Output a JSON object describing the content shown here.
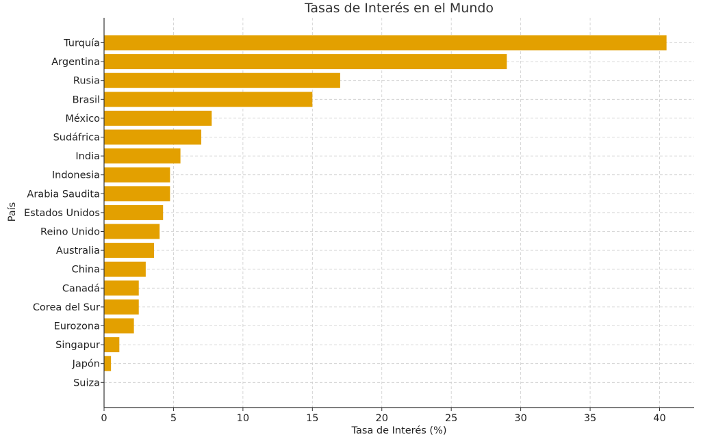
{
  "chart_data": {
    "type": "bar",
    "orientation": "horizontal",
    "title": "Tasas de Interés en el Mundo",
    "xlabel": "Tasa de Interés (%)",
    "ylabel": "País",
    "xlim": [
      0,
      42.5
    ],
    "xticks": [
      0,
      5,
      10,
      15,
      20,
      25,
      30,
      35,
      40
    ],
    "grid": true,
    "bar_color": "#e3a000",
    "categories": [
      "Turquía",
      "Argentina",
      "Rusia",
      "Brasil",
      "México",
      "Sudáfrica",
      "India",
      "Indonesia",
      "Arabia Saudita",
      "Estados Unidos",
      "Reino Unido",
      "Australia",
      "China",
      "Canadá",
      "Corea del Sur",
      "Eurozona",
      "Singapur",
      "Japón",
      "Suiza"
    ],
    "values": [
      40.5,
      29.0,
      17.0,
      15.0,
      7.75,
      7.0,
      5.5,
      4.75,
      4.75,
      4.25,
      4.0,
      3.6,
      3.0,
      2.5,
      2.5,
      2.15,
      1.1,
      0.5,
      0.0
    ]
  }
}
